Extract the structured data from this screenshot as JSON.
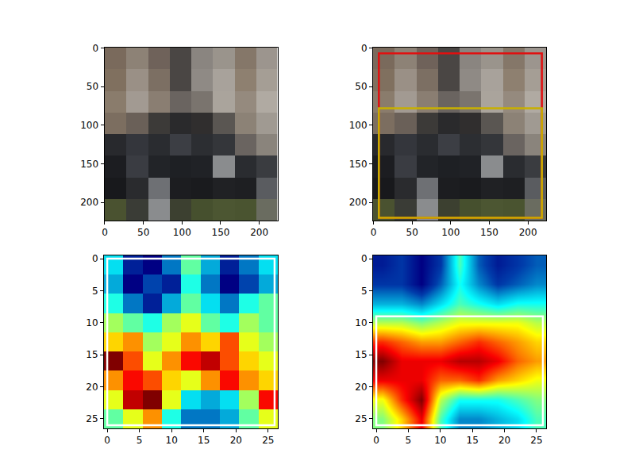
{
  "chart_data": [
    {
      "type": "image",
      "x": [
        13.5,
        41.5,
        69.5,
        97.5,
        125.5,
        153.5,
        181.5,
        209.5
      ],
      "y": [
        13.5,
        41.5,
        69.5,
        97.5,
        125.5,
        153.5,
        181.5,
        209.5
      ],
      "pixels": [
        [
          "#7a6a5c",
          "#8d8276",
          "#6f625a",
          "#4a4644",
          "#8a8580",
          "#9a948c",
          "#857769",
          "#9c958e"
        ],
        [
          "#80705f",
          "#9a9086",
          "#7c6f63",
          "#4a4644",
          "#8f8a85",
          "#a8a29b",
          "#8e8070",
          "#a59e95"
        ],
        [
          "#8a7c6c",
          "#a29a92",
          "#8a7e72",
          "#6a6460",
          "#7a746e",
          "#aaa49c",
          "#958a7e",
          "#b0aaa2"
        ],
        [
          "#7c6e60",
          "#6a6058",
          "#3c3a38",
          "#2a2a2c",
          "#302e2e",
          "#5a5652",
          "#8c8276",
          "#a09a92"
        ],
        [
          "#28292d",
          "#34363c",
          "#2a2c30",
          "#3c3e44",
          "#2c2e32",
          "#34363a",
          "#6a6460",
          "#8a847c"
        ],
        [
          "#1c1d21",
          "#3a3c42",
          "#222428",
          "#1e2024",
          "#202226",
          "#8a8c8e",
          "#2a2c30",
          "#3a3c40"
        ],
        [
          "#18191c",
          "#2a2b2e",
          "#6e7074",
          "#1c1d20",
          "#1a1b1e",
          "#202124",
          "#1e1f22",
          "#5a5c60"
        ],
        [
          "#4a5230",
          "#3a3c36",
          "#8a8c8e",
          "#3c4030",
          "#46502e",
          "#4c5632",
          "#4a5430",
          "#6a6c60"
        ]
      ],
      "xlim": [
        -0.5,
        223.5
      ],
      "ylim": [
        223.5,
        -0.5
      ],
      "xticks": [
        0,
        50,
        100,
        150,
        200
      ],
      "yticks": [
        0,
        50,
        100,
        150,
        200
      ],
      "boxes": []
    },
    {
      "type": "image",
      "x": [
        13.5,
        41.5,
        69.5,
        97.5,
        125.5,
        153.5,
        181.5,
        209.5
      ],
      "y": [
        13.5,
        41.5,
        69.5,
        97.5,
        125.5,
        153.5,
        181.5,
        209.5
      ],
      "pixels": [
        [
          "#7a6a5c",
          "#8d8276",
          "#6f625a",
          "#4a4644",
          "#8a8580",
          "#9a948c",
          "#857769",
          "#9c958e"
        ],
        [
          "#80705f",
          "#9a9086",
          "#7c6f63",
          "#4a4644",
          "#8f8a85",
          "#a8a29b",
          "#8e8070",
          "#a59e95"
        ],
        [
          "#8a7c6c",
          "#a29a92",
          "#8a7e72",
          "#6a6460",
          "#7a746e",
          "#aaa49c",
          "#958a7e",
          "#b0aaa2"
        ],
        [
          "#7c6e60",
          "#6a6058",
          "#3c3a38",
          "#2a2a2c",
          "#302e2e",
          "#5a5652",
          "#8c8276",
          "#a09a92"
        ],
        [
          "#28292d",
          "#34363c",
          "#2a2c30",
          "#3c3e44",
          "#2c2e32",
          "#34363a",
          "#6a6460",
          "#8a847c"
        ],
        [
          "#1c1d21",
          "#3a3c42",
          "#222428",
          "#1e2024",
          "#202226",
          "#8a8c8e",
          "#2a2c30",
          "#3a3c40"
        ],
        [
          "#18191c",
          "#2a2b2e",
          "#6e7074",
          "#1c1d20",
          "#1a1b1e",
          "#202124",
          "#1e1f22",
          "#5a5c60"
        ],
        [
          "#4a5230",
          "#3a3c36",
          "#8a8c8e",
          "#3c4030",
          "#46502e",
          "#4c5632",
          "#4a5430",
          "#6a6c60"
        ]
      ],
      "xlim": [
        -0.5,
        223.5
      ],
      "ylim": [
        223.5,
        -0.5
      ],
      "xticks": [
        0,
        50,
        100,
        150,
        200
      ],
      "yticks": [
        0,
        50,
        100,
        150,
        200
      ],
      "boxes": [
        {
          "x": [
            7,
            218
          ],
          "y": [
            7,
            220
          ],
          "color": "#e01010"
        },
        {
          "x": [
            7,
            218
          ],
          "y": [
            78,
            220
          ],
          "color": "#c8b000"
        }
      ]
    },
    {
      "type": "heatmap",
      "x": [
        1,
        4,
        7,
        10,
        13,
        16,
        19,
        22,
        25
      ],
      "y": [
        1,
        4,
        7,
        10,
        13,
        16,
        19,
        22,
        25
      ],
      "cells": [
        [
          0.4,
          0.2,
          0.15,
          0.3,
          0.5,
          0.35,
          0.2,
          0.3,
          0.4
        ],
        [
          0.35,
          0.15,
          0.25,
          0.2,
          0.45,
          0.3,
          0.15,
          0.25,
          0.35
        ],
        [
          0.45,
          0.3,
          0.2,
          0.35,
          0.5,
          0.4,
          0.3,
          0.45,
          0.5
        ],
        [
          0.55,
          0.5,
          0.45,
          0.55,
          0.6,
          0.5,
          0.45,
          0.55,
          0.5
        ],
        [
          0.65,
          0.7,
          0.55,
          0.6,
          0.7,
          0.65,
          0.75,
          0.6,
          0.55
        ],
        [
          0.9,
          0.75,
          0.6,
          0.7,
          0.8,
          0.85,
          0.75,
          0.65,
          0.6
        ],
        [
          0.7,
          0.8,
          0.75,
          0.65,
          0.6,
          0.7,
          0.8,
          0.7,
          0.65
        ],
        [
          0.6,
          0.85,
          0.9,
          0.6,
          0.4,
          0.35,
          0.4,
          0.55,
          0.8
        ],
        [
          0.5,
          0.6,
          0.7,
          0.45,
          0.3,
          0.3,
          0.35,
          0.5,
          0.6
        ]
      ],
      "xlim": [
        -0.5,
        26.5
      ],
      "ylim": [
        26.5,
        -0.5
      ],
      "xticks": [
        0,
        5,
        10,
        15,
        20,
        25
      ],
      "yticks": [
        0,
        5,
        10,
        15,
        20,
        25
      ],
      "boxes": [
        {
          "x": [
            0,
            26
          ],
          "y": [
            0,
            26
          ],
          "color": "#ffffff"
        }
      ]
    },
    {
      "type": "heatmap_smooth",
      "x": [
        1,
        4,
        7,
        10,
        13,
        16,
        19,
        22,
        25
      ],
      "y": [
        1,
        4,
        7,
        10,
        13,
        16,
        19,
        22,
        25
      ],
      "cells": [
        [
          0.1,
          0.15,
          0.05,
          0.15,
          0.45,
          0.2,
          0.1,
          0.15,
          0.2
        ],
        [
          0.15,
          0.15,
          0.05,
          0.2,
          0.4,
          0.25,
          0.15,
          0.2,
          0.25
        ],
        [
          0.3,
          0.3,
          0.25,
          0.35,
          0.45,
          0.4,
          0.35,
          0.4,
          0.4
        ],
        [
          0.55,
          0.55,
          0.5,
          0.55,
          0.6,
          0.6,
          0.6,
          0.6,
          0.55
        ],
        [
          0.8,
          0.75,
          0.7,
          0.7,
          0.75,
          0.8,
          0.75,
          0.7,
          0.65
        ],
        [
          0.95,
          0.85,
          0.85,
          0.85,
          0.9,
          0.9,
          0.85,
          0.75,
          0.7
        ],
        [
          0.85,
          0.85,
          0.85,
          0.75,
          0.75,
          0.8,
          0.7,
          0.65,
          0.6
        ],
        [
          0.6,
          0.8,
          0.95,
          0.55,
          0.4,
          0.4,
          0.4,
          0.45,
          0.5
        ],
        [
          0.5,
          0.65,
          0.85,
          0.45,
          0.25,
          0.25,
          0.3,
          0.35,
          0.45
        ]
      ],
      "xlim": [
        -0.5,
        26.5
      ],
      "ylim": [
        26.5,
        -0.5
      ],
      "xticks": [
        0,
        5,
        10,
        15,
        20,
        25
      ],
      "yticks": [
        0,
        5,
        10,
        15,
        20,
        25
      ],
      "boxes": [
        {
          "x": [
            0,
            26
          ],
          "y": [
            9,
            26
          ],
          "color": "#ffffff"
        }
      ]
    }
  ]
}
